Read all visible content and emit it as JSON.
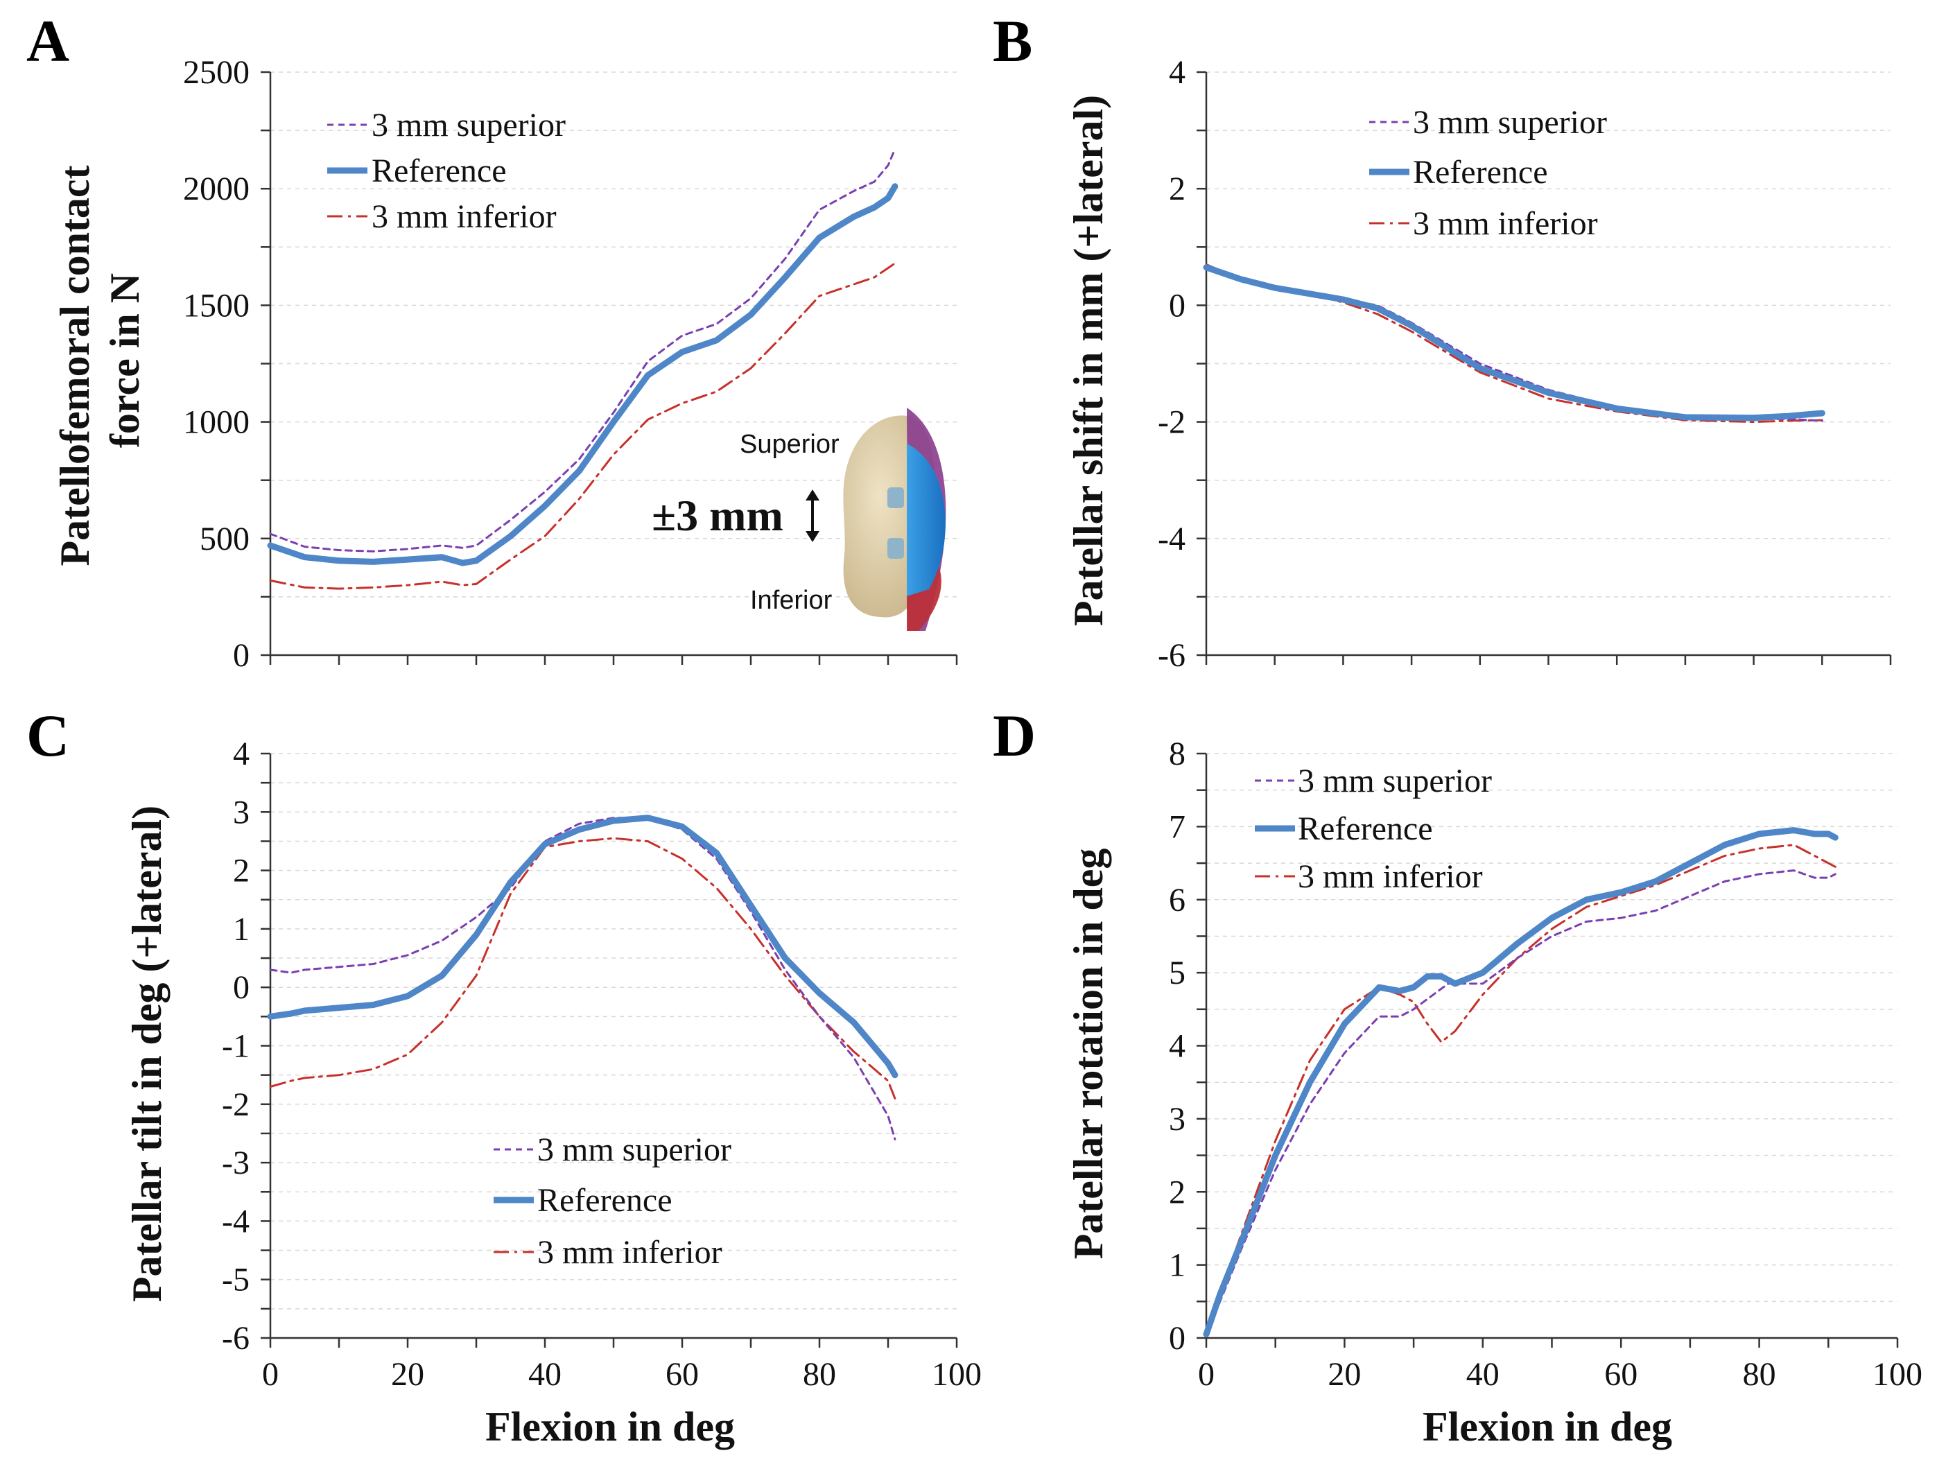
{
  "colors": {
    "superior": "#7a3fb0",
    "reference": "#4e86c8",
    "inferior": "#c8302a"
  },
  "legend_labels": {
    "superior": "3 mm superior",
    "reference": "Reference",
    "inferior": "3 mm inferior"
  },
  "xlabel": "Flexion in deg",
  "inset": {
    "superior_label": "Superior",
    "inferior_label": "Inferior",
    "shift_label": "±3 mm"
  },
  "chart_data": [
    {
      "id": "A",
      "type": "line",
      "ylabel_lines": [
        "Patellofemoral contact",
        "force in N"
      ],
      "xlim": [
        0,
        100
      ],
      "ylim": [
        0,
        2500
      ],
      "xticks": [],
      "yticks": [
        0,
        500,
        1000,
        1500,
        2000,
        2500
      ],
      "legend_position": "top-left",
      "series": [
        {
          "key": "superior",
          "x": [
            0,
            5,
            10,
            15,
            20,
            25,
            28,
            30,
            35,
            40,
            45,
            50,
            55,
            60,
            65,
            70,
            75,
            80,
            85,
            88,
            90,
            91
          ],
          "y": [
            520,
            465,
            450,
            445,
            455,
            470,
            460,
            470,
            580,
            700,
            840,
            1040,
            1260,
            1370,
            1420,
            1530,
            1700,
            1910,
            1990,
            2030,
            2100,
            2170
          ]
        },
        {
          "key": "reference",
          "x": [
            0,
            5,
            10,
            15,
            20,
            25,
            28,
            30,
            35,
            40,
            45,
            50,
            55,
            60,
            65,
            70,
            75,
            80,
            85,
            88,
            90,
            91
          ],
          "y": [
            470,
            420,
            405,
            400,
            410,
            420,
            395,
            405,
            510,
            640,
            790,
            1000,
            1200,
            1300,
            1350,
            1460,
            1620,
            1790,
            1880,
            1920,
            1960,
            2010
          ]
        },
        {
          "key": "inferior",
          "x": [
            0,
            5,
            10,
            15,
            20,
            25,
            28,
            30,
            35,
            40,
            45,
            50,
            55,
            60,
            65,
            70,
            75,
            80,
            85,
            88,
            90,
            91
          ],
          "y": [
            320,
            290,
            285,
            290,
            300,
            315,
            300,
            305,
            410,
            510,
            670,
            860,
            1010,
            1080,
            1130,
            1230,
            1380,
            1540,
            1590,
            1620,
            1660,
            1680
          ]
        }
      ]
    },
    {
      "id": "B",
      "type": "line",
      "ylabel_lines": [
        "Patellar shift in mm (+lateral)"
      ],
      "xlim": [
        0,
        100
      ],
      "ylim": [
        -6,
        4
      ],
      "xticks": [],
      "yticks": [
        -6,
        -4,
        -2,
        0,
        2,
        4
      ],
      "legend_position": "top-center",
      "series": [
        {
          "key": "superior",
          "x": [
            0,
            5,
            10,
            15,
            20,
            25,
            30,
            40,
            50,
            60,
            70,
            80,
            85,
            90
          ],
          "y": [
            0.65,
            0.45,
            0.3,
            0.2,
            0.1,
            0.0,
            -0.3,
            -1.0,
            -1.45,
            -1.75,
            -1.92,
            -1.95,
            -1.95,
            -1.98
          ]
        },
        {
          "key": "reference",
          "x": [
            0,
            5,
            10,
            15,
            20,
            25,
            30,
            40,
            50,
            60,
            70,
            80,
            85,
            90
          ],
          "y": [
            0.65,
            0.45,
            0.3,
            0.2,
            0.1,
            -0.05,
            -0.35,
            -1.08,
            -1.5,
            -1.77,
            -1.92,
            -1.93,
            -1.9,
            -1.85
          ]
        },
        {
          "key": "inferior",
          "x": [
            0,
            5,
            10,
            15,
            20,
            25,
            30,
            40,
            50,
            60,
            70,
            80,
            85,
            90
          ],
          "y": [
            0.7,
            0.45,
            0.3,
            0.2,
            0.05,
            -0.15,
            -0.45,
            -1.15,
            -1.6,
            -1.82,
            -1.97,
            -2.0,
            -1.98,
            -1.97
          ]
        }
      ]
    },
    {
      "id": "C",
      "type": "line",
      "ylabel_lines": [
        "Patellar tilt in deg (+lateral)"
      ],
      "xlim": [
        0,
        100
      ],
      "ylim": [
        -6,
        4
      ],
      "xticks": [
        0,
        20,
        40,
        60,
        80,
        100
      ],
      "yticks": [
        -6,
        -5,
        -4,
        -3,
        -2,
        -1,
        0,
        1,
        2,
        3,
        4
      ],
      "legend_position": "bottom-center",
      "series": [
        {
          "key": "superior",
          "x": [
            0,
            3,
            5,
            10,
            15,
            20,
            25,
            30,
            35,
            40,
            45,
            50,
            55,
            60,
            65,
            70,
            75,
            80,
            85,
            90,
            91
          ],
          "y": [
            0.3,
            0.25,
            0.3,
            0.35,
            0.4,
            0.55,
            0.8,
            1.2,
            1.7,
            2.5,
            2.8,
            2.9,
            2.9,
            2.7,
            2.2,
            1.3,
            0.3,
            -0.5,
            -1.2,
            -2.2,
            -2.6
          ]
        },
        {
          "key": "reference",
          "x": [
            0,
            3,
            5,
            10,
            15,
            20,
            25,
            30,
            35,
            40,
            45,
            50,
            55,
            60,
            65,
            70,
            75,
            80,
            85,
            90,
            91
          ],
          "y": [
            -0.5,
            -0.45,
            -0.4,
            -0.35,
            -0.3,
            -0.15,
            0.2,
            0.9,
            1.8,
            2.45,
            2.7,
            2.85,
            2.9,
            2.75,
            2.3,
            1.4,
            0.5,
            -0.1,
            -0.6,
            -1.3,
            -1.5
          ]
        },
        {
          "key": "inferior",
          "x": [
            0,
            3,
            5,
            10,
            15,
            20,
            25,
            30,
            35,
            40,
            45,
            50,
            55,
            60,
            65,
            70,
            75,
            80,
            85,
            90,
            91
          ],
          "y": [
            -1.7,
            -1.6,
            -1.55,
            -1.5,
            -1.4,
            -1.15,
            -0.6,
            0.2,
            1.6,
            2.4,
            2.5,
            2.55,
            2.5,
            2.2,
            1.7,
            1.0,
            0.2,
            -0.5,
            -1.1,
            -1.6,
            -1.9
          ]
        }
      ]
    },
    {
      "id": "D",
      "type": "line",
      "ylabel_lines": [
        "Patellar rotation in deg"
      ],
      "xlim": [
        0,
        100
      ],
      "ylim": [
        0,
        8
      ],
      "xticks": [
        0,
        20,
        40,
        60,
        80,
        100
      ],
      "yticks": [
        0,
        1,
        2,
        3,
        4,
        5,
        6,
        7,
        8
      ],
      "legend_position": "top-left",
      "series": [
        {
          "key": "superior",
          "x": [
            0,
            2,
            5,
            10,
            15,
            20,
            25,
            28,
            30,
            35,
            40,
            45,
            50,
            55,
            60,
            65,
            70,
            75,
            80,
            85,
            88,
            90,
            91
          ],
          "y": [
            0.05,
            0.5,
            1.2,
            2.3,
            3.2,
            3.9,
            4.4,
            4.4,
            4.5,
            4.85,
            4.85,
            5.2,
            5.5,
            5.7,
            5.75,
            5.85,
            6.05,
            6.25,
            6.35,
            6.4,
            6.3,
            6.3,
            6.35
          ]
        },
        {
          "key": "reference",
          "x": [
            0,
            2,
            5,
            10,
            15,
            20,
            25,
            28,
            30,
            32,
            34,
            36,
            40,
            45,
            50,
            55,
            60,
            65,
            70,
            75,
            80,
            85,
            88,
            90,
            91
          ],
          "y": [
            0.05,
            0.6,
            1.3,
            2.5,
            3.5,
            4.3,
            4.8,
            4.75,
            4.8,
            4.95,
            4.95,
            4.85,
            5.0,
            5.4,
            5.75,
            6.0,
            6.1,
            6.25,
            6.5,
            6.75,
            6.9,
            6.95,
            6.9,
            6.9,
            6.85
          ]
        },
        {
          "key": "inferior",
          "x": [
            0,
            2,
            5,
            10,
            15,
            20,
            25,
            28,
            30,
            32,
            34,
            36,
            40,
            45,
            50,
            55,
            60,
            65,
            70,
            75,
            80,
            85,
            88,
            90,
            91
          ],
          "y": [
            0.05,
            0.6,
            1.4,
            2.7,
            3.8,
            4.5,
            4.8,
            4.7,
            4.6,
            4.3,
            4.05,
            4.2,
            4.7,
            5.2,
            5.6,
            5.9,
            6.05,
            6.2,
            6.4,
            6.6,
            6.7,
            6.75,
            6.6,
            6.5,
            6.45
          ]
        }
      ]
    }
  ]
}
